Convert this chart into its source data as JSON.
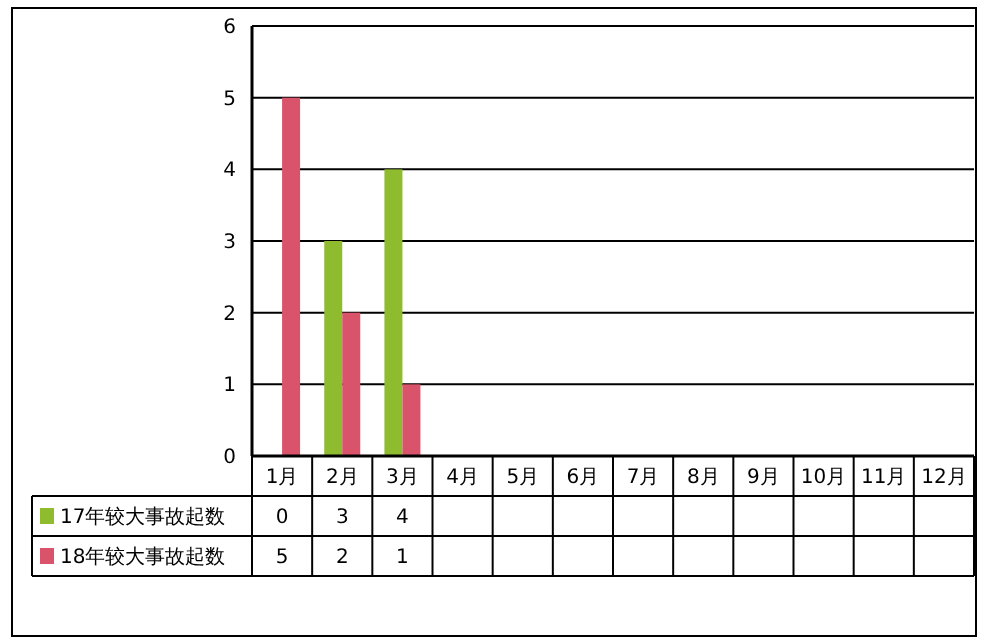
{
  "chart_data": {
    "type": "bar",
    "categories": [
      "1月",
      "2月",
      "3月",
      "4月",
      "5月",
      "6月",
      "7月",
      "8月",
      "9月",
      "10月",
      "11月",
      "12月"
    ],
    "series": [
      {
        "name": "17年较大事故起数",
        "color": "#8fbc2f",
        "values": [
          0,
          3,
          4,
          null,
          null,
          null,
          null,
          null,
          null,
          null,
          null,
          null
        ]
      },
      {
        "name": "18年较大事故起数",
        "color": "#d9546a",
        "values": [
          5,
          2,
          1,
          null,
          null,
          null,
          null,
          null,
          null,
          null,
          null,
          null
        ]
      }
    ],
    "ylim": [
      0,
      6
    ],
    "yticks": [
      0,
      1,
      2,
      3,
      4,
      5,
      6
    ],
    "grid": "y",
    "legend": "left",
    "data_labels": true
  }
}
